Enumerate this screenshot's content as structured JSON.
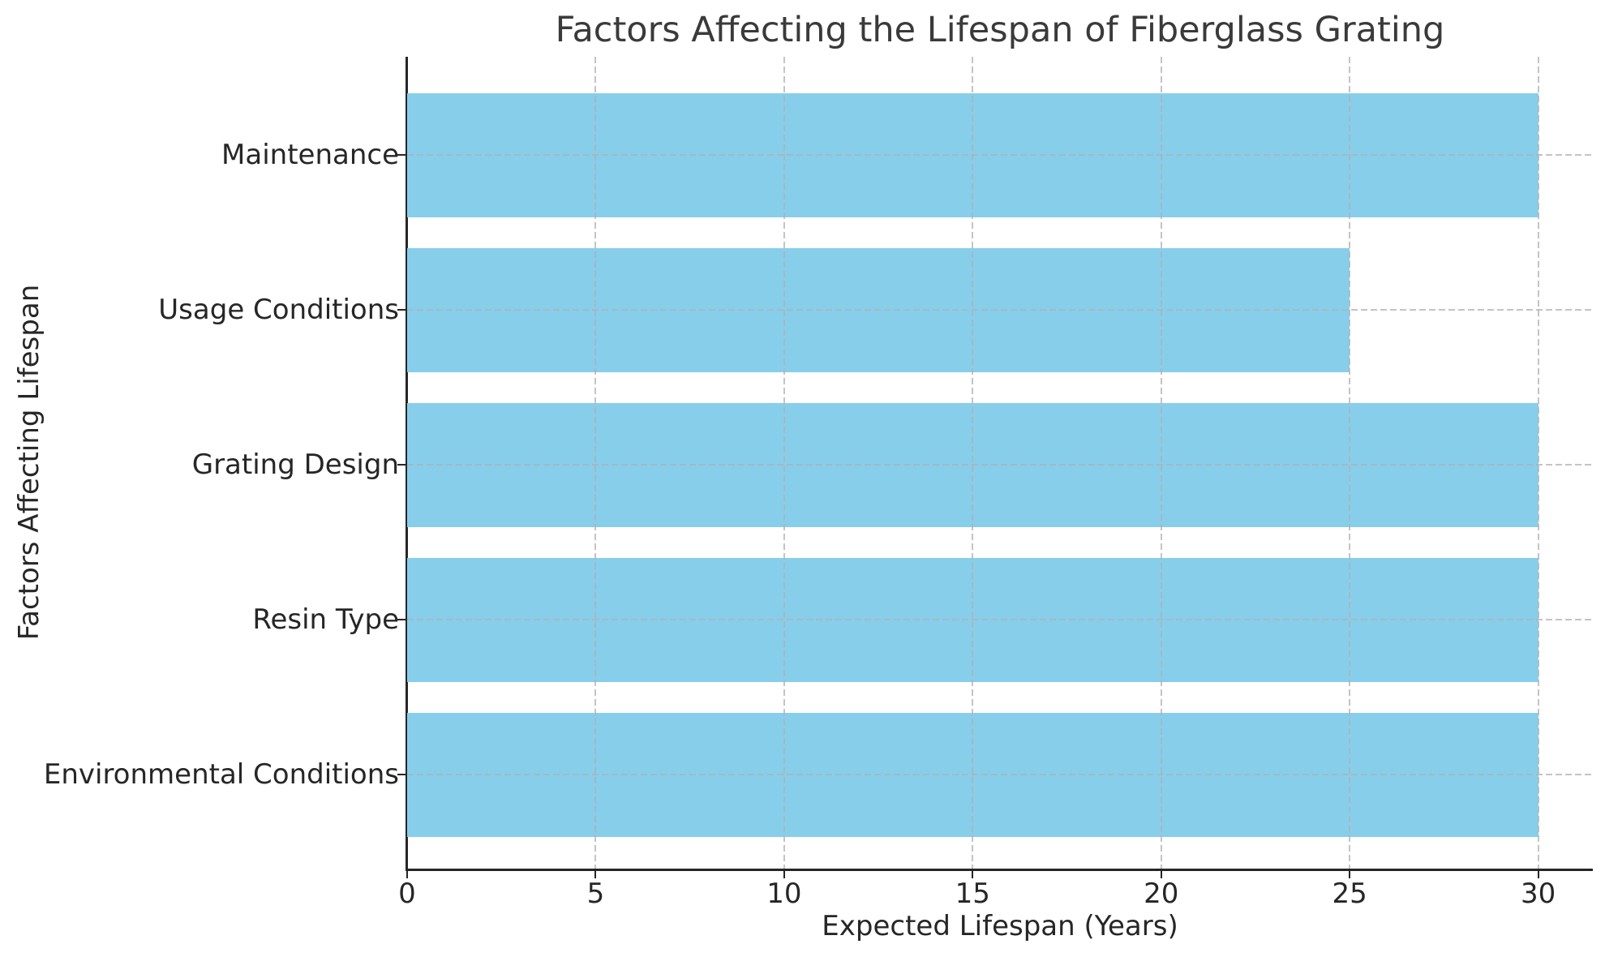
{
  "chart_data": {
    "type": "bar",
    "orientation": "horizontal",
    "title": "Factors Affecting the Lifespan of Fiberglass Grating",
    "xlabel": "Expected Lifespan (Years)",
    "ylabel": "Factors Affecting Lifespan",
    "categories": [
      "Maintenance",
      "Usage Conditions",
      "Grating Design",
      "Resin Type",
      "Environmental Conditions"
    ],
    "values": [
      30,
      25,
      30,
      30,
      30
    ],
    "xticks": [
      0,
      5,
      10,
      15,
      20,
      25,
      30
    ],
    "xlim": [
      0,
      31.45
    ],
    "grid": true,
    "grid_style": "dashed",
    "legend": "none",
    "colors": {
      "bar": "#87CEEB",
      "grid": "#b0b0b0",
      "spine": "#262626",
      "tick_text": "#262626",
      "title_text": "#3a3a3a",
      "background": "#ffffff"
    }
  }
}
